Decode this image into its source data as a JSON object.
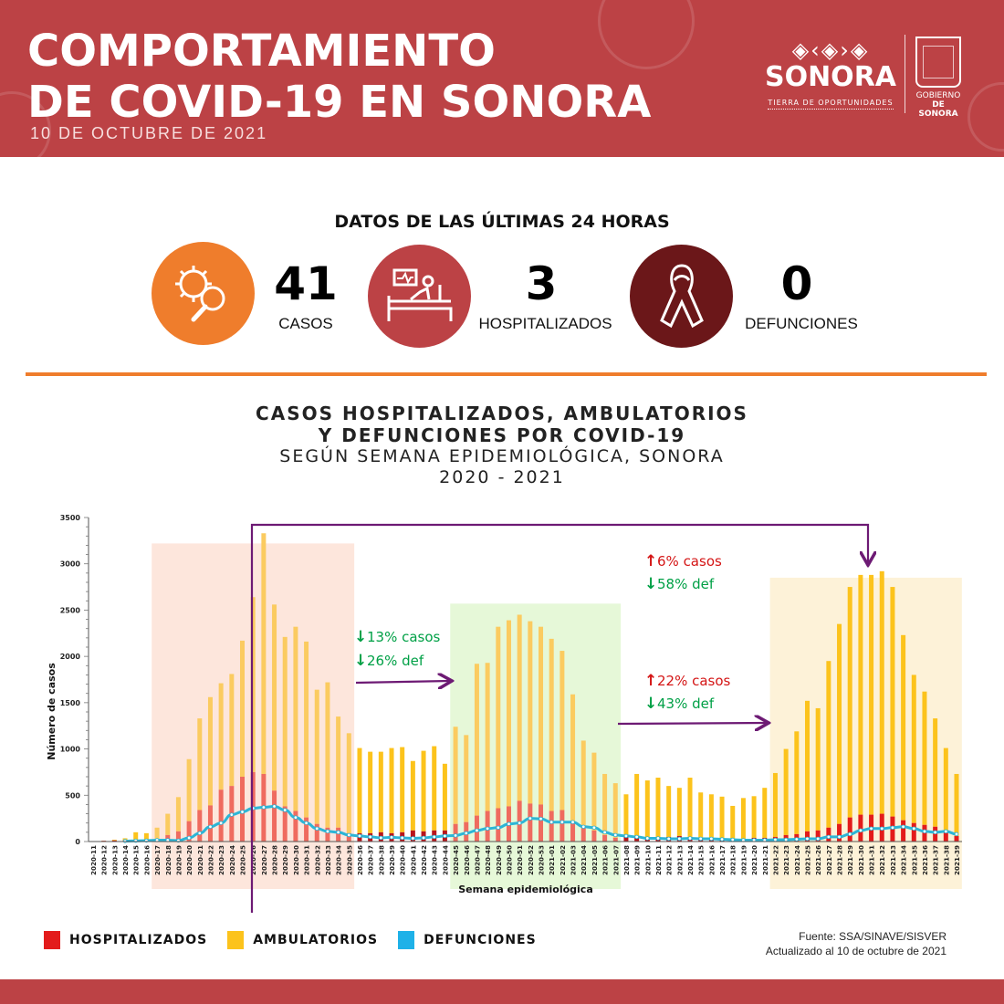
{
  "header": {
    "title_line1": "COMPORTAMIENTO",
    "title_line2": "DE COVID-19 EN SONORA",
    "date": "10 DE OCTUBRE DE 2021",
    "logo": {
      "pattern": "◈‹◈›◈",
      "name": "SONORA",
      "tagline": "TIERRA DE OPORTUNIDADES"
    },
    "government": {
      "line1": "GOBIERNO",
      "line2": "DE SONORA",
      "shield_label": "ESTADO DE SONORA"
    }
  },
  "last24h": {
    "title": "DATOS DE LAS ÚLTIMAS 24 HORAS",
    "stats": [
      {
        "icon": "virus-magnifier-icon",
        "value": "41",
        "label": "CASOS",
        "color": "#ef7d2c"
      },
      {
        "icon": "hospital-bed-icon",
        "value": "3",
        "label": "HOSPITALIZADOS",
        "color": "#bc4245"
      },
      {
        "icon": "ribbon-icon",
        "value": "0",
        "label": "DEFUNCIONES",
        "color": "#6b1719"
      }
    ]
  },
  "chart_data": {
    "type": "bar",
    "title": "CASOS HOSPITALIZADOS, AMBULATORIOS Y DEFUNCIONES POR COVID-19",
    "title_line1": "CASOS HOSPITALIZADOS, AMBULATORIOS",
    "title_line2": "Y DEFUNCIONES POR COVID-19",
    "subtitle": "SEGÚN SEMANA EPIDEMIOLÓGICA, SONORA",
    "subtitle2": "2020 - 2021",
    "xlabel": "Semana epidemiológica",
    "ylabel": "Número de casos",
    "ylim": [
      0,
      3500
    ],
    "yticks": [
      0,
      500,
      1000,
      1500,
      2000,
      2500,
      3000,
      3500
    ],
    "stacked": true,
    "grid": false,
    "categories": [
      "2020-11",
      "2020-12",
      "2020-13",
      "2020-14",
      "2020-15",
      "2020-16",
      "2020-17",
      "2020-18",
      "2020-19",
      "2020-20",
      "2020-21",
      "2020-22",
      "2020-23",
      "2020-24",
      "2020-25",
      "2020-26",
      "2020-27",
      "2020-28",
      "2020-29",
      "2020-30",
      "2020-31",
      "2020-32",
      "2020-33",
      "2020-34",
      "2020-35",
      "2020-36",
      "2020-37",
      "2020-38",
      "2020-39",
      "2020-40",
      "2020-41",
      "2020-42",
      "2020-43",
      "2020-44",
      "2020-45",
      "2020-46",
      "2020-47",
      "2020-48",
      "2020-49",
      "2020-50",
      "2020-51",
      "2020-52",
      "2020-53",
      "2021-01",
      "2021-02",
      "2021-03",
      "2021-04",
      "2021-05",
      "2021-06",
      "2021-07",
      "2021-08",
      "2021-09",
      "2021-10",
      "2021-11",
      "2021-12",
      "2021-13",
      "2021-14",
      "2021-15",
      "2021-16",
      "2021-17",
      "2021-18",
      "2021-19",
      "2021-20",
      "2021-21",
      "2021-22",
      "2021-23",
      "2021-24",
      "2021-25",
      "2021-26",
      "2021-27",
      "2021-28",
      "2021-29",
      "2021-30",
      "2021-31",
      "2021-32",
      "2021-33",
      "2021-34",
      "2021-35",
      "2021-36",
      "2021-37",
      "2021-38",
      "2021-39"
    ],
    "series": [
      {
        "name": "HOSPITALIZADOS",
        "color": "#e31b1b",
        "values": [
          5,
          8,
          12,
          10,
          20,
          20,
          30,
          70,
          110,
          220,
          340,
          390,
          560,
          600,
          700,
          750,
          730,
          550,
          380,
          330,
          260,
          190,
          150,
          150,
          90,
          90,
          90,
          100,
          90,
          100,
          120,
          110,
          120,
          120,
          190,
          210,
          280,
          330,
          360,
          380,
          440,
          410,
          400,
          330,
          340,
          200,
          160,
          120,
          70,
          40,
          50,
          40,
          40,
          50,
          50,
          60,
          50,
          40,
          40,
          35,
          25,
          30,
          40,
          40,
          50,
          70,
          80,
          110,
          120,
          150,
          190,
          260,
          290,
          290,
          300,
          270,
          230,
          200,
          180,
          160,
          120,
          60
        ]
      },
      {
        "name": "AMBULATORIOS",
        "color": "#fcc31c",
        "values": [
          0,
          2,
          8,
          25,
          80,
          70,
          120,
          230,
          370,
          670,
          990,
          1170,
          1150,
          1210,
          1470,
          1890,
          2600,
          2010,
          1830,
          1990,
          1900,
          1450,
          1570,
          1200,
          1080,
          920,
          880,
          870,
          920,
          920,
          750,
          870,
          910,
          720,
          1050,
          940,
          1640,
          1600,
          1960,
          2010,
          2010,
          1970,
          1920,
          1860,
          1720,
          1390,
          930,
          840,
          660,
          590,
          460,
          690,
          620,
          640,
          550,
          520,
          640,
          490,
          470,
          450,
          360,
          440,
          450,
          540,
          690,
          930,
          1110,
          1410,
          1320,
          1800,
          2160,
          2490,
          2590,
          2590,
          2620,
          2480,
          2000,
          1600,
          1440,
          1170,
          890,
          670
        ]
      },
      {
        "name": "DEFUNCIONES",
        "color": "#2cb5d6",
        "type": "line",
        "values": [
          0,
          0,
          0,
          5,
          8,
          10,
          15,
          15,
          10,
          40,
          90,
          160,
          200,
          290,
          320,
          360,
          370,
          380,
          340,
          260,
          200,
          140,
          110,
          100,
          70,
          60,
          50,
          40,
          45,
          40,
          35,
          40,
          50,
          60,
          65,
          90,
          120,
          140,
          150,
          190,
          200,
          250,
          245,
          210,
          210,
          210,
          160,
          150,
          100,
          70,
          60,
          50,
          35,
          35,
          30,
          30,
          35,
          30,
          30,
          25,
          20,
          15,
          15,
          15,
          20,
          20,
          25,
          30,
          30,
          50,
          50,
          80,
          120,
          140,
          140,
          150,
          160,
          140,
          110,
          100,
          110,
          80
        ]
      }
    ],
    "highlight_periods": [
      {
        "from": "2020-17",
        "to": "2020-35",
        "color": "#fde6dc"
      },
      {
        "from": "2020-45",
        "to": "2021-07",
        "color": "#e6f8d8"
      },
      {
        "from": "2021-22",
        "to": "2021-39",
        "color": "#fdf2d8"
      }
    ],
    "annotations": [
      {
        "text": "13% casos",
        "direction": "down",
        "color": "#00a046"
      },
      {
        "text": "26% def",
        "direction": "down",
        "color": "#00a046"
      },
      {
        "text": "22% casos",
        "direction": "up",
        "color": "#d41515"
      },
      {
        "text": "43% def",
        "direction": "down",
        "color": "#00a046"
      },
      {
        "text": "6% casos",
        "direction": "up",
        "color": "#d41515"
      },
      {
        "text": "58% def",
        "direction": "down",
        "color": "#00a046"
      }
    ],
    "legend": {
      "position": "bottom-left",
      "items": [
        "HOSPITALIZADOS",
        "AMBULATORIOS",
        "DEFUNCIONES"
      ]
    }
  },
  "source": {
    "line1": "Fuente: SSA/SINAVE/SISVER",
    "line2": "Actualizado al 10 de octubre de 2021"
  }
}
